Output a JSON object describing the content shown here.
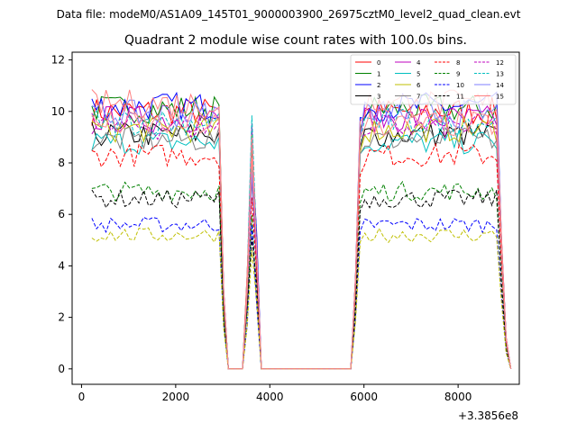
{
  "chart_data": {
    "type": "line",
    "suptitle": "Data file: modeM0/AS1A09_145T01_9000003900_26975cztM0_level2_quad_clean.evt",
    "title": "Quadrant 2 module wise count rates with 100.0s bins.",
    "xlabel": "",
    "ylabel": "",
    "offset_label": "+3.3856e8",
    "xlim": [
      -200,
      9300
    ],
    "ylim": [
      -0.6,
      12.3
    ],
    "xticks": [
      0,
      2000,
      4000,
      6000,
      8000
    ],
    "xtick_labels": [
      "0",
      "2000",
      "4000",
      "6000",
      "8000"
    ],
    "yticks": [
      0,
      2,
      4,
      6,
      8,
      10,
      12
    ],
    "ytick_labels": [
      "0",
      "2",
      "4",
      "6",
      "8",
      "10",
      "12"
    ],
    "legend_position": "upper right",
    "bin_x_start": 220,
    "bin_x_step": 100,
    "bin_count": 90,
    "timeline": {
      "on_bins_1": [
        0,
        27
      ],
      "ramp_down_1": [
        27,
        28,
        29
      ],
      "flare_bins": [
        33,
        34,
        35
      ],
      "flare_scale": [
        0.35,
        0.9,
        0.45
      ],
      "off_bins": [
        [
          29,
          32
        ],
        [
          36,
          56
        ]
      ],
      "ramp_up_2": [
        56,
        57
      ],
      "on_bins_2": [
        58,
        86
      ],
      "end_bins": [
        87,
        88
      ],
      "end_scale": [
        0.5,
        0.12
      ]
    },
    "series": [
      {
        "name": "0",
        "color": "#ff0000",
        "dash": "solid",
        "level": 10.0
      },
      {
        "name": "1",
        "color": "#008000",
        "dash": "solid",
        "level": 10.1
      },
      {
        "name": "2",
        "color": "#0000ff",
        "dash": "solid",
        "level": 10.2
      },
      {
        "name": "3",
        "color": "#000000",
        "dash": "solid",
        "level": 9.1
      },
      {
        "name": "4",
        "color": "#bf00bf",
        "dash": "solid",
        "level": 9.7
      },
      {
        "name": "5",
        "color": "#00bfbf",
        "dash": "solid",
        "level": 8.8
      },
      {
        "name": "6",
        "color": "#bfbf00",
        "dash": "solid",
        "level": 9.3
      },
      {
        "name": "7",
        "color": "#808080",
        "dash": "solid",
        "level": 8.9
      },
      {
        "name": "8",
        "color": "#ff0000",
        "dash": "dashed",
        "level": 8.3
      },
      {
        "name": "9",
        "color": "#008000",
        "dash": "dashed",
        "level": 6.9
      },
      {
        "name": "10",
        "color": "#0000ff",
        "dash": "dashed",
        "level": 5.6
      },
      {
        "name": "11",
        "color": "#000000",
        "dash": "dashed",
        "level": 6.6
      },
      {
        "name": "12",
        "color": "#bf00bf",
        "dash": "dashed",
        "level": 9.4
      },
      {
        "name": "13",
        "color": "#00bfbf",
        "dash": "dashed",
        "level": 9.6
      },
      {
        "name": "14",
        "color": "#7f7fff",
        "dash": "solid",
        "level": 9.9
      },
      {
        "name": "15",
        "color": "#ff7f7f",
        "dash": "solid",
        "level": 10.3
      }
    ],
    "extra_series": [
      {
        "name": "",
        "color": "#bfbf00",
        "dash": "dashed",
        "level": 5.2
      },
      {
        "name": "",
        "color": "#ff8c8c",
        "dash": "solid",
        "level": 9.5
      }
    ]
  }
}
